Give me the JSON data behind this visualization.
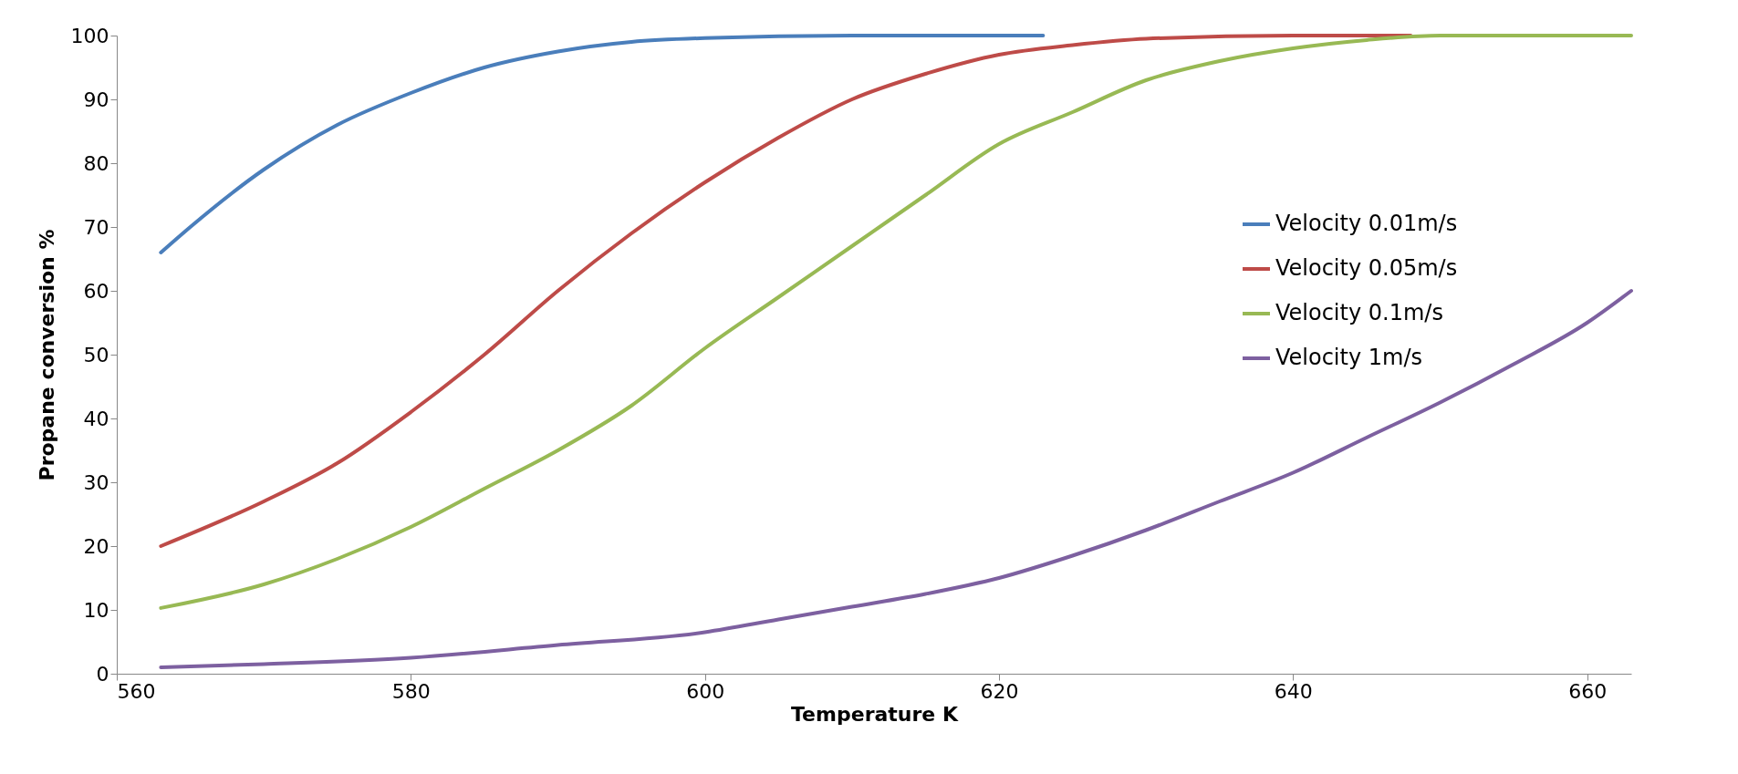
{
  "chart_data": {
    "type": "line",
    "xlabel": "Temperature K",
    "ylabel": "Propane conversion %",
    "xlim": [
      560,
      663
    ],
    "xticks": [
      560,
      580,
      600,
      620,
      640,
      660
    ],
    "ylim": [
      0,
      100
    ],
    "yticks": [
      0,
      10,
      20,
      30,
      40,
      50,
      60,
      70,
      80,
      90,
      100
    ],
    "grid": false,
    "legend": "top right",
    "marker": "none",
    "line_style": "solid",
    "series": [
      {
        "name": "Velocity 0.01m/s",
        "color": "#4a7ebb",
        "x": [
          563,
          565,
          570,
          575,
          580,
          585,
          590,
          595,
          600,
          610,
          623
        ],
        "values": [
          66,
          70,
          79,
          86,
          91,
          95,
          97.5,
          99,
          99.6,
          100,
          100
        ]
      },
      {
        "name": "Velocity 0.05m/s",
        "color": "#be4b48",
        "x": [
          563,
          570,
          575,
          580,
          585,
          590,
          595,
          600,
          605,
          610,
          615,
          620,
          625,
          630,
          640,
          648
        ],
        "values": [
          20,
          27,
          33,
          41,
          50,
          60,
          69,
          77,
          84,
          90,
          94,
          97,
          98.5,
          99.5,
          100,
          100
        ]
      },
      {
        "name": "Velocity 0.1m/s",
        "color": "#98b954",
        "x": [
          563,
          570,
          575,
          580,
          585,
          590,
          595,
          600,
          605,
          610,
          615,
          620,
          625,
          630,
          635,
          640,
          645,
          650,
          663
        ],
        "values": [
          10.3,
          14,
          18,
          23,
          29,
          35,
          42,
          51,
          59,
          67,
          75,
          83,
          88,
          93,
          96,
          98,
          99.3,
          100,
          100
        ]
      },
      {
        "name": "Velocity 1m/s",
        "color": "#7d60a0",
        "x": [
          563,
          570,
          580,
          590,
          600,
          605,
          610,
          615,
          620,
          625,
          630,
          635,
          640,
          645,
          650,
          655,
          660,
          663
        ],
        "values": [
          1,
          1.5,
          2.5,
          4.5,
          6.5,
          8.5,
          10.5,
          12.5,
          15,
          18.5,
          22.5,
          27,
          31.5,
          37,
          42.5,
          48.5,
          55,
          60
        ]
      }
    ]
  }
}
